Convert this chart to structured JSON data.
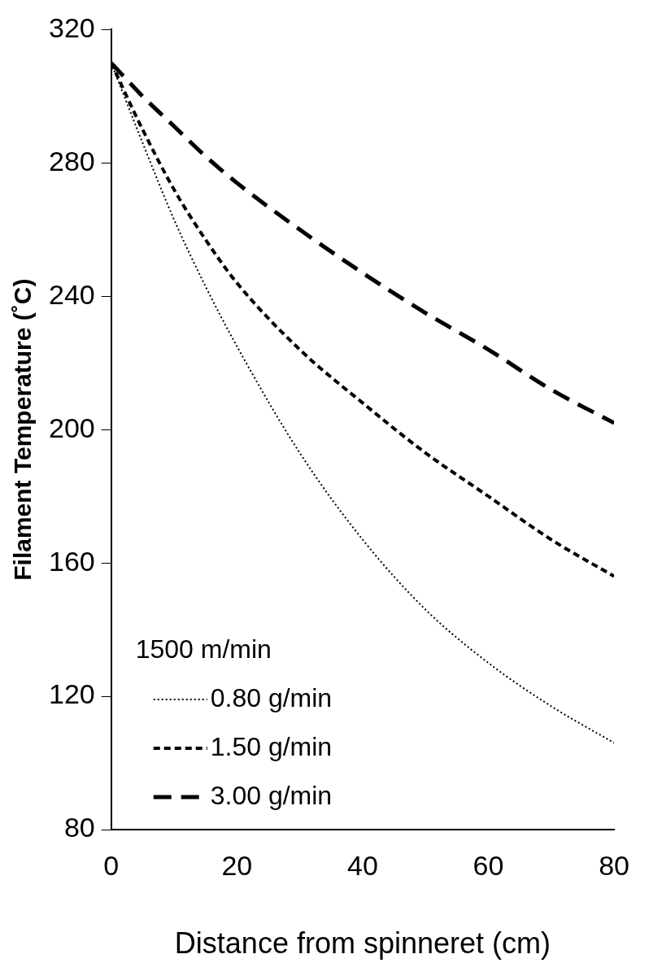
{
  "chart_data": {
    "type": "line",
    "xlabel": "Distance from spinneret (cm)",
    "ylabel": "Filament Temperature (˚C)",
    "legend_title": "1500 m/min",
    "legend": "bottom left",
    "grid": false,
    "marker": "none",
    "x": [
      0,
      5,
      10,
      15,
      20,
      30,
      40,
      50,
      60,
      70,
      80
    ],
    "xlim": [
      0,
      80
    ],
    "xticks": [
      0,
      20,
      40,
      60,
      80
    ],
    "ylim": [
      80,
      320
    ],
    "yticks": [
      80,
      120,
      160,
      200,
      240,
      280,
      320
    ],
    "series": [
      {
        "name": "0.80 g/min",
        "color": "#000000",
        "line_style": "dotted",
        "values": [
          310,
          286,
          263,
          243,
          225,
          193,
          167,
          146,
          130,
          117,
          106
        ]
      },
      {
        "name": "1.50 g/min",
        "color": "#000000",
        "line_style": "dashed",
        "values": [
          310,
          290,
          272,
          257,
          244,
          224,
          208,
          193,
          180,
          167,
          156
        ]
      },
      {
        "name": "3.00 g/min",
        "color": "#000000",
        "line_style": "longdash",
        "values": [
          310,
          300,
          291,
          282,
          274,
          260,
          247,
          235,
          224,
          212,
          202
        ]
      }
    ]
  }
}
